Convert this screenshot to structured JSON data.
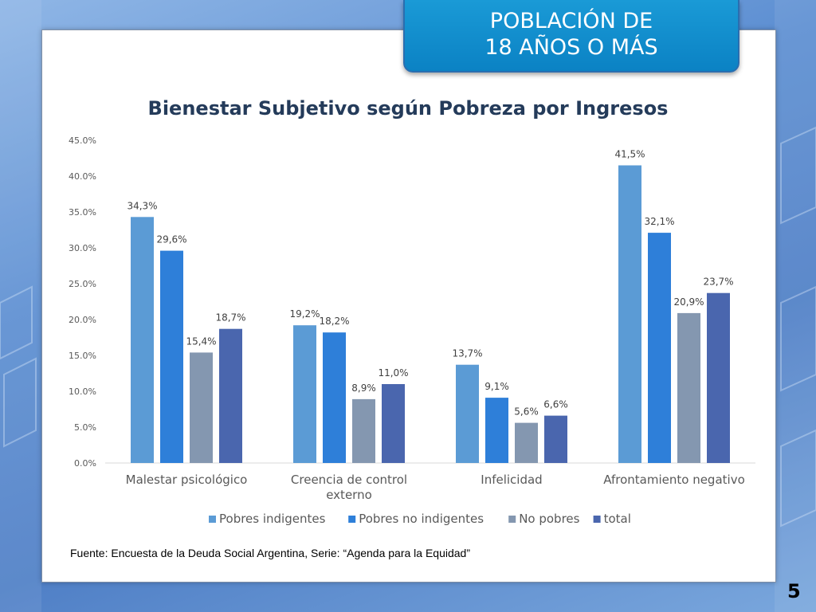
{
  "slide": {
    "banner_line1": "POBLACIÓN DE",
    "banner_line2": "18 AÑOS O MÁS",
    "source": "Fuente: Encuesta de la Deuda Social Argentina, Serie: “Agenda para la Equidad”",
    "page_number": "5"
  },
  "chart_data": {
    "type": "bar",
    "title": "Bienestar Subjetivo según Pobreza por Ingresos",
    "categories": [
      [
        "Malestar psicológico"
      ],
      [
        "Creencia de control",
        "externo"
      ],
      [
        "Infelicidad"
      ],
      [
        "Afrontamiento negativo"
      ]
    ],
    "series": [
      {
        "name": "Pobres indigentes",
        "color": "#5b9bd5",
        "values": [
          34.3,
          19.2,
          13.7,
          41.5
        ],
        "labels": [
          "34,3%",
          "19,2%",
          "13,7%",
          "41,5%"
        ]
      },
      {
        "name": "Pobres no indigentes",
        "color": "#2e7fd9",
        "values": [
          29.6,
          18.2,
          9.1,
          32.1
        ],
        "labels": [
          "29,6%",
          "18,2%",
          "9,1%",
          "32,1%"
        ]
      },
      {
        "name": "No pobres",
        "color": "#8497b0",
        "values": [
          15.4,
          8.9,
          5.6,
          20.9
        ],
        "labels": [
          "15,4%",
          "8,9%",
          "5,6%",
          "20,9%"
        ]
      },
      {
        "name": "total",
        "color": "#4a66ae",
        "values": [
          18.7,
          11.0,
          6.6,
          23.7
        ],
        "labels": [
          "18,7%",
          "11,0%",
          "6,6%",
          "23,7%"
        ]
      }
    ],
    "ylim": [
      0,
      45
    ],
    "ytick_values": [
      0,
      5,
      10,
      15,
      20,
      25,
      30,
      35,
      40,
      45
    ],
    "ytick_labels": [
      "0.0%",
      "5.0%",
      "10.0%",
      "15.0%",
      "20.0%",
      "25.0%",
      "30.0%",
      "35.0%",
      "40.0%",
      "45.0%"
    ],
    "xlabel": "",
    "ylabel": "",
    "legend_position": "bottom",
    "grid": false
  }
}
